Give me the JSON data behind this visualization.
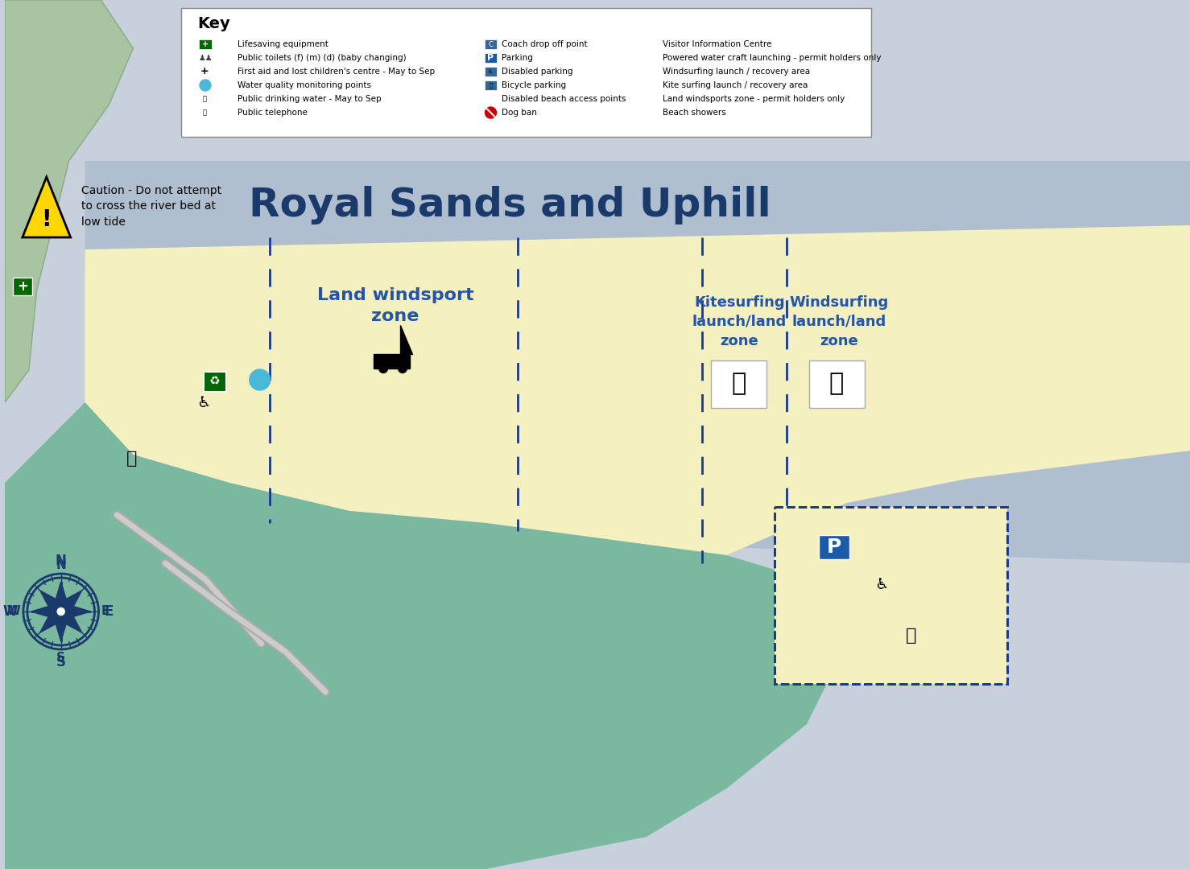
{
  "title": "Royal Sands and Uphill",
  "title_color": "#1a3a6b",
  "title_fontsize": 36,
  "title_bold": true,
  "bg_color": "#c8d0dc",
  "sea_color": "#a8b8c8",
  "beach_color": "#f5f0c0",
  "estuary_color": "#7ab8a0",
  "land_color": "#b8d4b0",
  "key_bg": "#ffffff",
  "zone_label_color": "#2255aa",
  "dashed_color": "#1a3a8a",
  "parking_color": "#1a5aa8",
  "caution_text": "Caution - Do not attempt\nto cross the river bed at\nlow tide",
  "zone1_label": "Land windsport\nzone",
  "zone2_label": "Kitesurfing\nlaunch/land\nzone",
  "zone3_label": "Windsurfing\nlaunch/land\nzone"
}
